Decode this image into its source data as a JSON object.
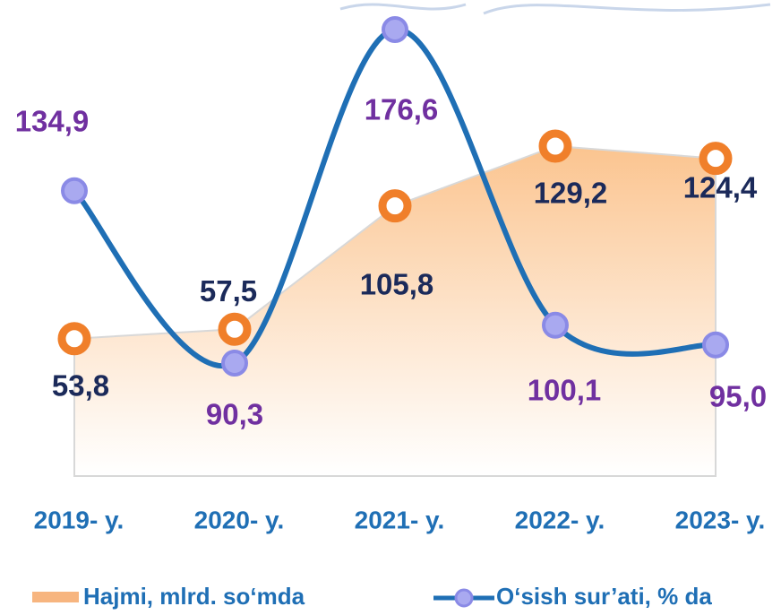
{
  "chart_data": {
    "type": "area-line",
    "categories": [
      "2019- y.",
      "2020- y.",
      "2021- y.",
      "2022- y.",
      "2023- y."
    ],
    "series": [
      {
        "name": "Hajmi, mlrd. so‘mda",
        "type": "area",
        "color": "#f7b57f",
        "marker_color": "#f07f2a",
        "label_color": "#1b2a5a",
        "values": [
          53.8,
          57.5,
          105.8,
          129.2,
          124.4
        ],
        "value_labels": [
          "53,8",
          "57,5",
          "105,8",
          "129,2",
          "124,4"
        ]
      },
      {
        "name": "O‘sish sur’ati, % da",
        "type": "line",
        "color": "#1f6fb5",
        "marker_color": "#a9a9f0",
        "label_color": "#7030a0",
        "values": [
          134.9,
          90.3,
          176.6,
          100.1,
          95.0
        ],
        "value_labels": [
          "134,9",
          "90,3",
          "176,6",
          "100,1",
          "95,0"
        ]
      }
    ],
    "category_color": "#1f6fb5",
    "legend": "bottom"
  }
}
